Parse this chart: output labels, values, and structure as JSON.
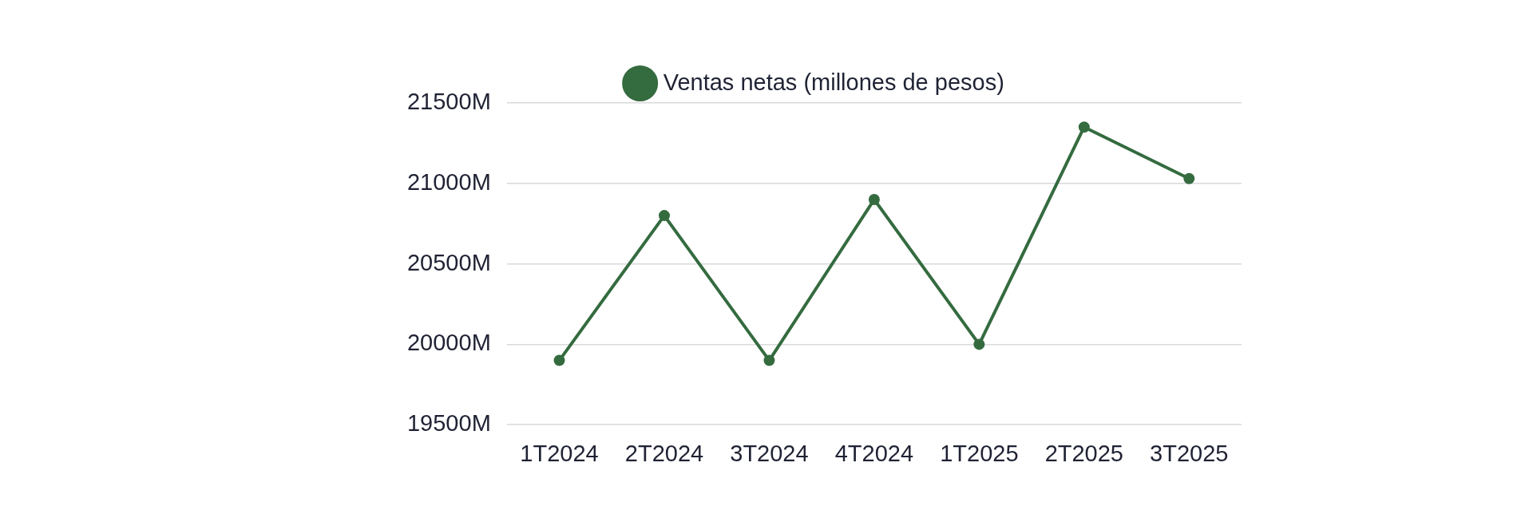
{
  "chart_data": {
    "type": "line",
    "categories": [
      "1T2024",
      "2T2024",
      "3T2024",
      "4T2024",
      "1T2025",
      "2T2025",
      "3T2025"
    ],
    "series": [
      {
        "name": "Ventas netas (millones de pesos)",
        "color": "#346b3f",
        "values": [
          19900,
          20800,
          19900,
          20900,
          20000,
          21350,
          21030
        ]
      }
    ],
    "ylim": [
      19500,
      21500
    ],
    "yticks": [
      {
        "value": 19500,
        "label": "19500M"
      },
      {
        "value": 20000,
        "label": "20000M"
      },
      {
        "value": 20500,
        "label": "20500M"
      },
      {
        "value": 21000,
        "label": "21000M"
      },
      {
        "value": 21500,
        "label": "21500M"
      }
    ],
    "grid": "y",
    "legend": "top",
    "marker": "circle",
    "line_style": "solid"
  }
}
